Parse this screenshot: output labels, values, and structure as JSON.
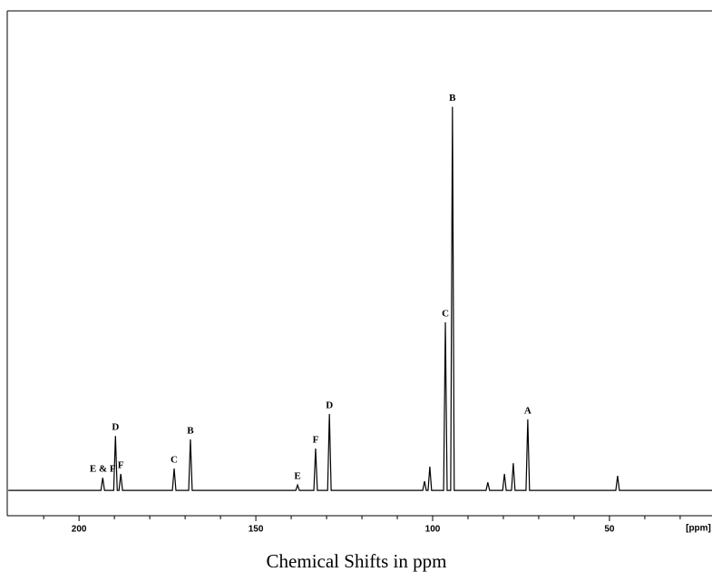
{
  "chart_data": {
    "type": "line",
    "title": "Chemical Shifts in ppm",
    "x_unit_label": "[ppm]",
    "color": "#000000",
    "x": [
      220,
      193.8,
      193.3,
      192.8,
      190.2,
      189.7,
      189.2,
      188.7,
      188.2,
      187.7,
      173.6,
      173.1,
      172.6,
      169,
      168.5,
      168,
      138.7,
      138.2,
      137.7,
      133.6,
      133.1,
      132.6,
      129.7,
      129.2,
      128.7,
      102.8,
      102.3,
      101.8,
      101.3,
      100.8,
      100.3,
      96.9,
      96.4,
      95.9,
      94.9,
      94.4,
      93.9,
      84.9,
      84.4,
      83.9,
      80.2,
      79.7,
      79.2,
      77.7,
      77.2,
      76.7,
      73.6,
      73.1,
      72.6,
      48.2,
      47.7,
      47.2,
      21
    ],
    "values": [
      0,
      0,
      3.3,
      0,
      0,
      14.2,
      0,
      0,
      4.3,
      0,
      0,
      5.7,
      0,
      0,
      13.3,
      0,
      0,
      1.4,
      0,
      0,
      10.9,
      0,
      0,
      19.9,
      0,
      0,
      2.4,
      0,
      0,
      6.2,
      0,
      0,
      43.8,
      0,
      0,
      100,
      0,
      0,
      2.1,
      0,
      0,
      4.3,
      0,
      0,
      7.1,
      0,
      0,
      18.5,
      0,
      0,
      3.8,
      0,
      0
    ],
    "annotations": [
      {
        "text": "E & F",
        "x": 193.3
      },
      {
        "text": "D",
        "x": 189.7
      },
      {
        "text": "F",
        "x": 188.2
      },
      {
        "text": "C",
        "x": 173.1
      },
      {
        "text": "B",
        "x": 168.5
      },
      {
        "text": "E",
        "x": 138.2
      },
      {
        "text": "F",
        "x": 133.1
      },
      {
        "text": "D",
        "x": 129.2
      },
      {
        "text": "C",
        "x": 96.4
      },
      {
        "text": "B",
        "x": 94.4
      },
      {
        "text": "A",
        "x": 73.1
      }
    ],
    "xlim": [
      220.3,
      21
    ],
    "xticks": [
      200,
      150,
      100,
      50
    ],
    "x_minor_ticks": [
      210,
      190,
      180,
      170,
      160,
      140,
      130,
      120,
      110,
      90,
      80,
      70,
      60,
      40,
      30
    ],
    "ylim": [
      -6.6,
      125
    ]
  }
}
